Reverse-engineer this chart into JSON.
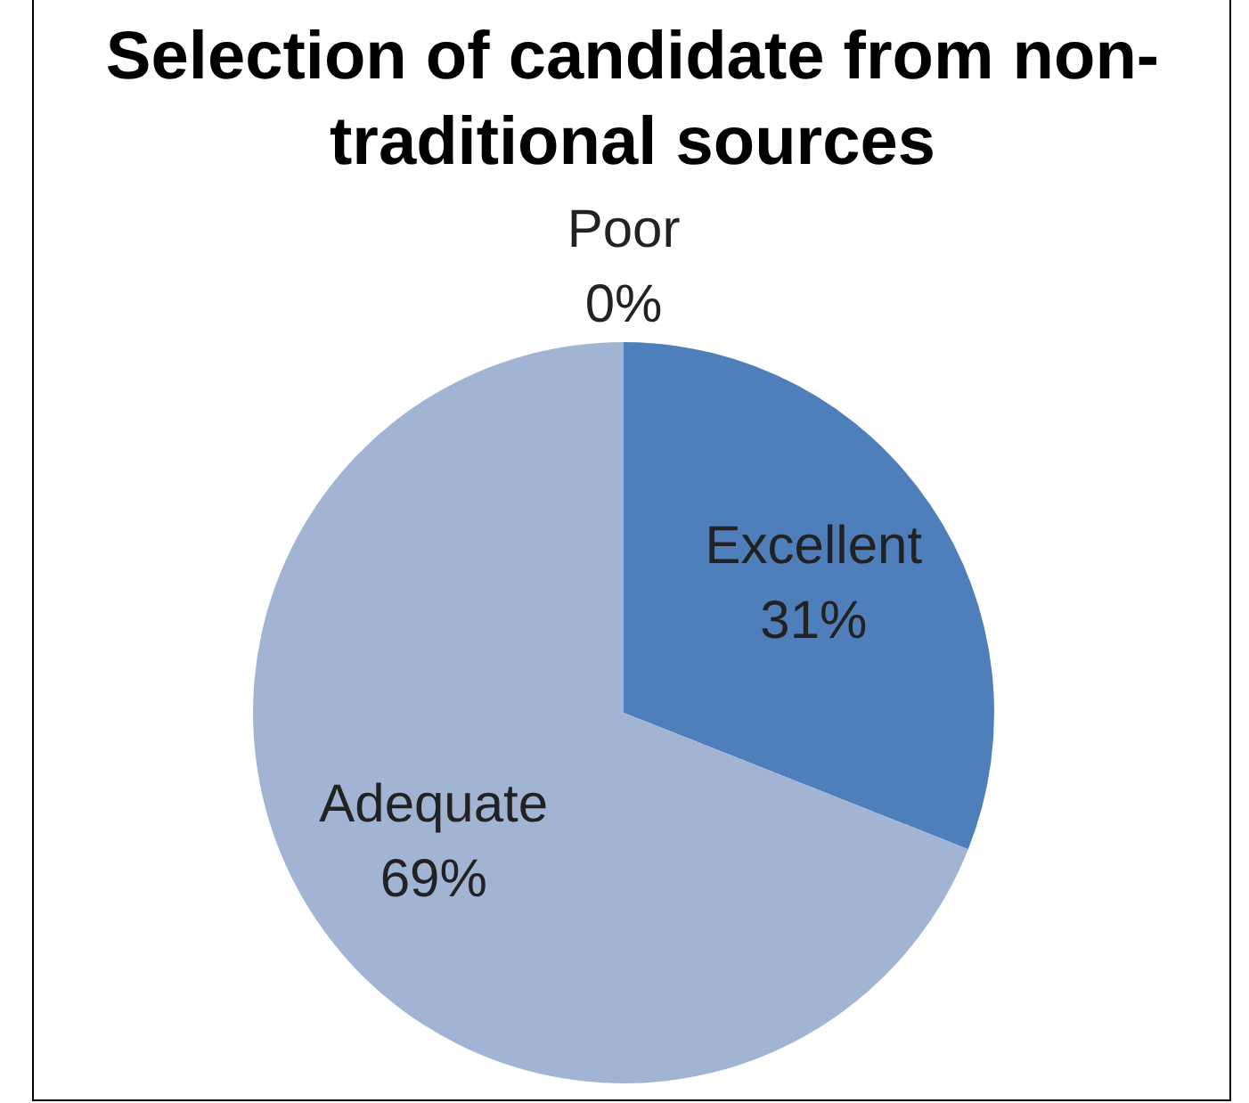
{
  "chart_data": {
    "type": "pie",
    "title": "Selection of candidate from non-traditional sources",
    "categories": [
      "Excellent",
      "Adequate",
      "Poor"
    ],
    "values": [
      31,
      69,
      0
    ],
    "value_labels": [
      "31%",
      "69%",
      "0%"
    ],
    "colors": [
      "#4f7fbb",
      "#a2b4d4",
      "#c0504d"
    ],
    "legend": false
  }
}
